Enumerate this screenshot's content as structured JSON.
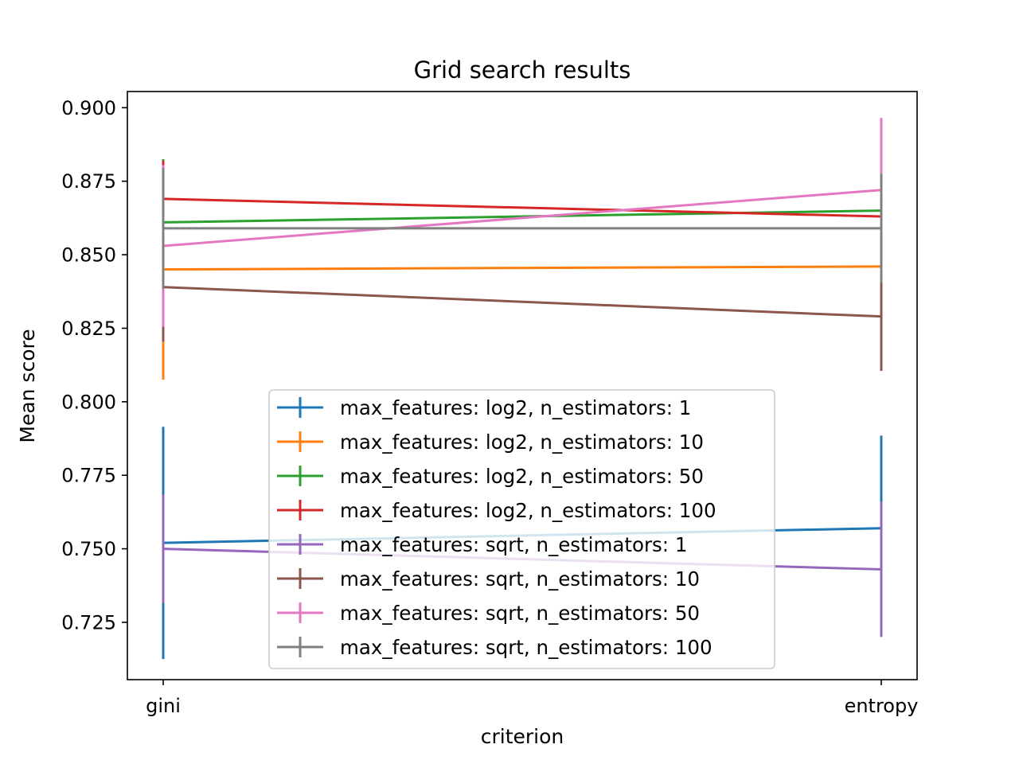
{
  "chart_data": {
    "type": "line",
    "title": "Grid search results",
    "xlabel": "criterion",
    "ylabel": "Mean score",
    "categories": [
      "gini",
      "entropy"
    ],
    "ylim": [
      0.7055,
      0.9055
    ],
    "yticks": [
      0.725,
      0.75,
      0.775,
      0.8,
      0.825,
      0.85,
      0.875,
      0.9
    ],
    "ytick_labels": [
      "0.725",
      "0.750",
      "0.775",
      "0.800",
      "0.825",
      "0.850",
      "0.875",
      "0.900"
    ],
    "grid": false,
    "legend_position": "lower-center",
    "series": [
      {
        "name": "max_features: log2, n_estimators: 1",
        "color": "#1f77b4",
        "values": [
          0.752,
          0.757
        ],
        "errors": [
          0.0395,
          0.0315
        ]
      },
      {
        "name": "max_features: log2, n_estimators: 10",
        "color": "#ff7f0e",
        "values": [
          0.845,
          0.846
        ],
        "errors": [
          0.0375,
          0.034
        ]
      },
      {
        "name": "max_features: log2, n_estimators: 50",
        "color": "#2ca02c",
        "values": [
          0.861,
          0.865
        ],
        "errors": [
          0.0215,
          0.0095
        ]
      },
      {
        "name": "max_features: log2, n_estimators: 100",
        "color": "#d62728",
        "values": [
          0.869,
          0.863
        ],
        "errors": [
          0.013,
          0.0145
        ]
      },
      {
        "name": "max_features: sqrt, n_estimators: 1",
        "color": "#9467bd",
        "values": [
          0.75,
          0.743
        ],
        "errors": [
          0.0185,
          0.023
        ]
      },
      {
        "name": "max_features: sqrt, n_estimators: 10",
        "color": "#8c564b",
        "values": [
          0.839,
          0.829
        ],
        "errors": [
          0.0185,
          0.0185
        ]
      },
      {
        "name": "max_features: sqrt, n_estimators: 50",
        "color": "#e377c2",
        "values": [
          0.853,
          0.872
        ],
        "errors": [
          0.0275,
          0.0245
        ]
      },
      {
        "name": "max_features: sqrt, n_estimators: 100",
        "color": "#7f7f7f",
        "values": [
          0.859,
          0.859
        ],
        "errors": [
          0.0205,
          0.0185
        ]
      }
    ]
  }
}
